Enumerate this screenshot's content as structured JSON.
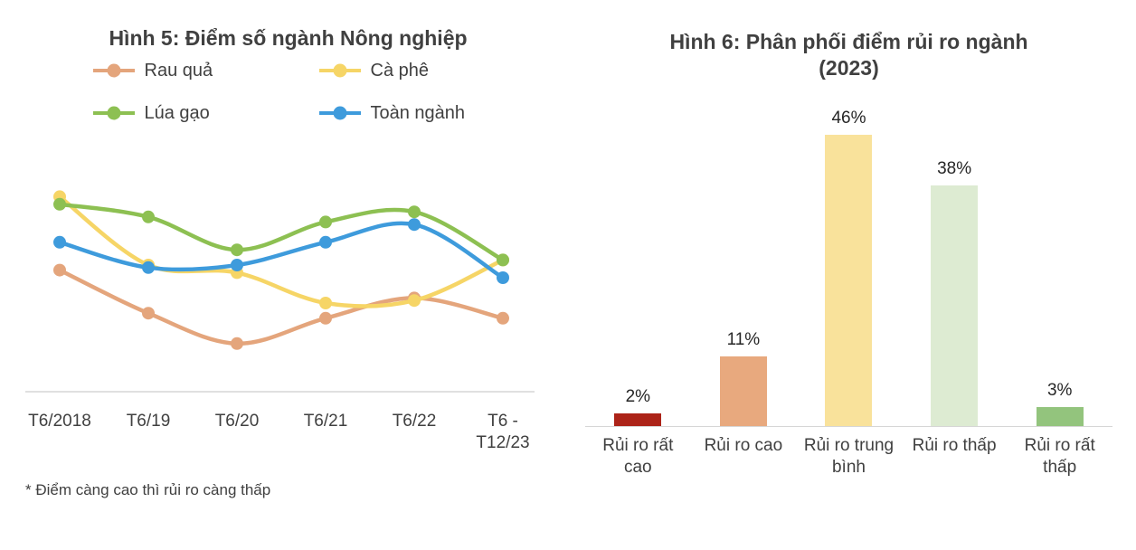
{
  "figures": {
    "left_title": "Hình 5: Điểm số ngành Nông nghiệp",
    "right_title": "Hình 6: Phân phối điểm rủi ro ngành\n(2023)",
    "footnote": "* Điểm càng cao thì rủi ro càng thấp"
  },
  "colors": {
    "text": "#404040",
    "axis": "#d6d6d6"
  },
  "chart_data": [
    {
      "type": "line",
      "title": "Hình 5: Điểm số ngành Nông nghiệp",
      "x": [
        "T6/2018",
        "T6/19",
        "T6/20",
        "T6/21",
        "T6/22",
        "T6 -\nT12/23"
      ],
      "series": [
        {
          "name": "Rau quả",
          "color": "#E4A57C",
          "values": [
            48,
            31,
            19,
            29,
            37,
            29
          ]
        },
        {
          "name": "Cà phê",
          "color": "#F6D566",
          "values": [
            77,
            50,
            47,
            35,
            36,
            52
          ]
        },
        {
          "name": "Lúa gạo",
          "color": "#8DC052",
          "values": [
            74,
            69,
            56,
            67,
            71,
            52
          ]
        },
        {
          "name": "Toàn ngành",
          "color": "#3E9BDC",
          "values": [
            59,
            49,
            50,
            59,
            66,
            45
          ]
        }
      ],
      "ylim": [
        0,
        100
      ],
      "grid": false,
      "legend_position": "top",
      "note": "* Điểm càng cao thì rủi ro càng thấp"
    },
    {
      "type": "bar",
      "title": "Hình 6: Phân phối điểm rủi ro ngành (2023)",
      "categories": [
        "Rủi ro rất cao",
        "Rủi ro cao",
        "Rủi ro trung bình",
        "Rủi ro thấp",
        "Rủi ro rất thấp"
      ],
      "values": [
        2,
        11,
        46,
        38,
        3
      ],
      "value_labels": [
        "2%",
        "11%",
        "46%",
        "38%",
        "3%"
      ],
      "colors": [
        "#AC2318",
        "#E8A97E",
        "#F9E29B",
        "#DDEBD2",
        "#93C47D"
      ],
      "ylim": [
        0,
        50
      ],
      "grid": false
    }
  ]
}
